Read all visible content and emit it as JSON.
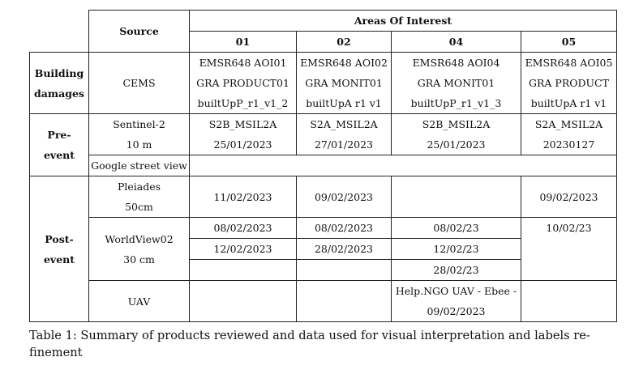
{
  "header": {
    "source": "Source",
    "areas_of_interest": "Areas Of Interest",
    "aoi_ids": [
      "01",
      "02",
      "04",
      "05"
    ]
  },
  "rows": {
    "building_damages": {
      "label_lines": [
        "Building",
        "damages"
      ],
      "source": "CEMS",
      "cells": [
        [
          "EMSR648 AOI01",
          "GRA PRODUCT01",
          "builtUpP_r1_v1_2"
        ],
        [
          "EMSR648 AOI02",
          "GRA MONIT01",
          "builtUpA r1 v1"
        ],
        [
          "EMSR648 AOI04",
          "GRA MONIT01",
          "builtUpP_r1_v1_3"
        ],
        [
          "EMSR648 AOI05",
          "GRA PRODUCT",
          "builtUpA r1 v1"
        ]
      ]
    },
    "pre_event": {
      "label_lines": [
        "Pre-",
        "event"
      ],
      "sentinel": {
        "source_lines": [
          "Sentinel-2",
          "10 m"
        ],
        "cells": [
          [
            "S2B_MSIL2A",
            "25/01/2023"
          ],
          [
            "S2A_MSIL2A",
            "27/01/2023"
          ],
          [
            "S2B_MSIL2A",
            "25/01/2023"
          ],
          [
            "S2A_MSIL2A",
            "20230127"
          ]
        ]
      },
      "google": {
        "source": "Google street view"
      }
    },
    "post_event": {
      "label_lines": [
        "Post-",
        "event"
      ],
      "pleiades": {
        "source_lines": [
          "Pleiades",
          "50cm"
        ],
        "cells": [
          "11/02/2023",
          "09/02/2023",
          "",
          "09/02/2023"
        ]
      },
      "worldview": {
        "source_lines": [
          "WorldView02",
          "30 cm"
        ],
        "row1": [
          "08/02/2023",
          "08/02/2023",
          "08/02/23",
          "10/02/23"
        ],
        "row2": [
          "12/02/2023",
          "28/02/2023",
          "12/02/23"
        ],
        "row3": [
          "28/02/23"
        ]
      },
      "uav": {
        "source": "UAV",
        "aoi04_lines": [
          "Help.NGO UAV - Ebee -",
          "09/02/2023"
        ]
      }
    }
  },
  "caption": {
    "line1": "Table 1: Summary of products reviewed and data used for visual interpretation and labels re-",
    "line2": "finement"
  }
}
